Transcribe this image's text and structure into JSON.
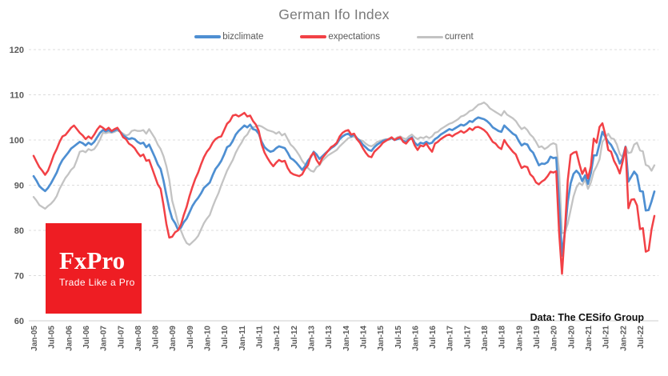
{
  "header": {
    "title": "German Ifo Index"
  },
  "source_note": "Data: The CESifo Group",
  "logo": {
    "brand": "FxPro",
    "tagline": "Trade Like a Pro",
    "bg_color": "#ee1d23"
  },
  "chart_data": {
    "type": "line",
    "title": "German Ifo Index",
    "xlabel": "",
    "ylabel": "",
    "ylim": [
      60,
      120
    ],
    "y_ticks": [
      60,
      70,
      80,
      90,
      100,
      110,
      120
    ],
    "grid": "horizontal-dashed",
    "legend_position": "top-center",
    "x_start_month": "Jan-05",
    "x_end_month": "Dec-22",
    "x_frequency": "monthly",
    "x_tick_every_months": 6,
    "x_tick_labels": [
      "Jan-05",
      "Jul-05",
      "Jan-06",
      "Jul-06",
      "Jan-07",
      "Jul-07",
      "Jan-08",
      "Jul-08",
      "Jan-09",
      "Jul-09",
      "Jan-10",
      "Jul-10",
      "Jan-11",
      "Jul-11",
      "Jan-12",
      "Jul-12",
      "Jan-13",
      "Jul-13",
      "Jan-14",
      "Jul-14",
      "Jan-15",
      "Jul-15",
      "Jan-16",
      "Jul-16",
      "Jan-17",
      "Jul-17",
      "Jan-18",
      "Jul-18",
      "Jan-19",
      "Jul-19",
      "Jan-20",
      "Jul-20",
      "Jan-21",
      "Jul-21",
      "Jan-22",
      "Jul-22"
    ],
    "axis_colors": {
      "tick_label": "#595959",
      "gridline": "#dcdcdc",
      "axisline": "#cfcfcf"
    },
    "series": [
      {
        "name": "bizclimate",
        "color": "#4e8fd2",
        "width": 2.7,
        "values": [
          92.0,
          91.0,
          89.8,
          89.2,
          88.7,
          89.4,
          90.4,
          91.6,
          92.8,
          94.4,
          95.6,
          96.4,
          97.2,
          98.1,
          98.6,
          99.1,
          99.6,
          99.3,
          98.8,
          99.4,
          99.0,
          99.6,
          100.6,
          101.6,
          102.2,
          101.9,
          102.2,
          101.8,
          102.1,
          102.4,
          101.8,
          101.0,
          100.6,
          100.2,
          100.4,
          100.2,
          99.6,
          99.2,
          99.4,
          98.4,
          99.0,
          97.6,
          96.2,
          94.6,
          93.6,
          91.0,
          87.8,
          84.8,
          82.6,
          81.6,
          80.2,
          80.6,
          81.8,
          82.6,
          84.0,
          85.4,
          86.4,
          87.2,
          88.2,
          89.4,
          90.0,
          90.6,
          92.2,
          93.6,
          94.4,
          95.4,
          96.8,
          98.4,
          98.8,
          99.8,
          101.2,
          102.0,
          102.6,
          103.2,
          102.8,
          103.4,
          102.4,
          102.2,
          101.4,
          99.6,
          98.4,
          97.8,
          97.4,
          97.6,
          98.2,
          98.6,
          98.4,
          98.2,
          97.2,
          96.0,
          95.6,
          95.0,
          94.2,
          93.4,
          94.2,
          95.4,
          96.2,
          97.4,
          96.8,
          95.8,
          96.4,
          97.0,
          97.6,
          98.2,
          98.6,
          99.2,
          100.2,
          100.8,
          101.2,
          101.4,
          100.8,
          101.2,
          100.4,
          99.8,
          99.0,
          98.4,
          97.8,
          97.6,
          98.4,
          99.0,
          99.4,
          99.8,
          100.0,
          100.2,
          100.4,
          100.0,
          100.2,
          100.4,
          99.8,
          99.6,
          100.2,
          100.6,
          99.4,
          98.8,
          99.4,
          99.2,
          99.6,
          99.2,
          99.4,
          100.2,
          100.6,
          101.2,
          101.6,
          102.0,
          102.4,
          102.2,
          102.6,
          103.0,
          103.4,
          103.2,
          103.6,
          104.2,
          104.0,
          104.6,
          105.0,
          104.8,
          104.6,
          104.2,
          103.6,
          102.8,
          102.4,
          102.0,
          101.8,
          103.2,
          102.6,
          102.0,
          101.4,
          101.0,
          99.8,
          98.8,
          99.2,
          99.0,
          97.8,
          97.2,
          95.8,
          94.4,
          94.8,
          94.7,
          95.1,
          96.3,
          96.0,
          96.1,
          85.9,
          74.4,
          79.7,
          86.3,
          90.4,
          92.5,
          93.2,
          92.5,
          90.9,
          92.2,
          90.3,
          92.7,
          96.6,
          96.6,
          99.2,
          101.8,
          100.7,
          99.6,
          98.9,
          97.7,
          96.6,
          94.8,
          96.0,
          98.5,
          90.8,
          91.9,
          93.0,
          92.2,
          88.7,
          88.6,
          84.4,
          84.5,
          86.4,
          88.6
        ]
      },
      {
        "name": "expectations",
        "color": "#f24146",
        "width": 2.5,
        "values": [
          96.5,
          95.2,
          94.0,
          93.2,
          92.3,
          93.2,
          94.9,
          96.7,
          98.0,
          99.6,
          100.8,
          101.1,
          101.9,
          102.7,
          103.2,
          102.4,
          101.6,
          101.0,
          100.2,
          100.8,
          100.3,
          101.2,
          102.3,
          103.1,
          102.7,
          102.2,
          102.7,
          102.0,
          102.4,
          102.7,
          101.8,
          100.6,
          100.2,
          99.2,
          98.8,
          98.2,
          97.2,
          96.4,
          96.8,
          95.4,
          95.6,
          93.8,
          92.0,
          90.2,
          89.2,
          85.6,
          81.4,
          78.4,
          78.6,
          79.6,
          80.0,
          81.2,
          83.4,
          85.2,
          87.6,
          89.6,
          91.4,
          92.8,
          94.6,
          96.2,
          97.4,
          98.2,
          99.4,
          100.2,
          100.6,
          100.8,
          102.2,
          103.6,
          104.2,
          105.4,
          105.6,
          105.2,
          105.6,
          106.0,
          105.2,
          105.4,
          104.2,
          103.4,
          102.0,
          99.0,
          97.2,
          96.0,
          95.0,
          94.2,
          95.0,
          95.6,
          95.2,
          95.4,
          93.8,
          92.8,
          92.4,
          92.2,
          92.0,
          92.4,
          93.6,
          94.4,
          96.4,
          97.2,
          95.6,
          94.6,
          96.0,
          96.8,
          97.6,
          98.4,
          98.8,
          99.4,
          100.8,
          101.6,
          102.0,
          102.2,
          101.2,
          101.4,
          100.2,
          99.4,
          98.2,
          97.2,
          96.4,
          96.2,
          97.4,
          98.0,
          98.6,
          99.4,
          99.8,
          100.2,
          100.6,
          100.0,
          100.4,
          100.6,
          99.6,
          99.2,
          100.0,
          100.4,
          98.8,
          97.8,
          98.8,
          98.6,
          99.2,
          98.2,
          97.4,
          99.2,
          99.6,
          100.2,
          100.6,
          101.0,
          101.2,
          100.8,
          101.3,
          101.6,
          102.0,
          101.6,
          102.0,
          102.6,
          102.2,
          102.8,
          102.9,
          102.6,
          102.2,
          101.6,
          100.6,
          99.6,
          99.2,
          98.4,
          98.0,
          100.0,
          99.0,
          98.2,
          97.4,
          96.8,
          95.2,
          93.8,
          94.2,
          94.0,
          92.4,
          91.8,
          90.6,
          90.2,
          90.8,
          91.2,
          92.0,
          93.0,
          92.8,
          93.1,
          79.5,
          70.4,
          79.9,
          91.1,
          96.7,
          97.2,
          97.4,
          94.7,
          92.5,
          93.8,
          91.5,
          94.2,
          100.3,
          99.4,
          102.9,
          103.7,
          101.2,
          97.8,
          97.4,
          95.4,
          94.2,
          92.6,
          95.2,
          98.4,
          84.9,
          86.8,
          86.9,
          85.5,
          80.3,
          80.5,
          75.3,
          75.6,
          80.2,
          83.2
        ]
      },
      {
        "name": "current",
        "color": "#c3c3c3",
        "width": 2.3,
        "values": [
          87.4,
          86.6,
          85.6,
          85.2,
          84.8,
          85.4,
          85.9,
          86.6,
          87.6,
          89.2,
          90.4,
          91.6,
          92.4,
          93.4,
          94.0,
          95.6,
          97.4,
          97.6,
          97.3,
          98.0,
          97.7,
          98.0,
          98.9,
          100.1,
          101.6,
          101.5,
          101.7,
          101.6,
          101.8,
          102.1,
          101.8,
          101.4,
          101.0,
          101.2,
          102.0,
          102.2,
          102.0,
          102.0,
          102.2,
          101.4,
          102.4,
          101.4,
          100.4,
          99.0,
          98.0,
          96.4,
          94.2,
          91.2,
          86.6,
          84.2,
          81.6,
          80.0,
          78.4,
          77.2,
          76.8,
          77.4,
          78.0,
          78.8,
          80.2,
          81.6,
          82.6,
          83.4,
          85.2,
          86.8,
          88.2,
          90.0,
          91.6,
          93.2,
          94.4,
          95.6,
          97.2,
          98.4,
          99.4,
          100.6,
          101.2,
          102.4,
          102.8,
          103.0,
          103.2,
          103.0,
          102.6,
          102.2,
          102.0,
          101.8,
          101.4,
          101.8,
          101.0,
          101.4,
          100.2,
          99.0,
          98.4,
          97.6,
          96.6,
          95.4,
          94.6,
          93.8,
          93.2,
          93.0,
          94.0,
          94.4,
          95.4,
          96.0,
          96.6,
          97.0,
          97.4,
          97.8,
          98.6,
          99.2,
          99.8,
          100.4,
          100.6,
          100.8,
          100.2,
          100.0,
          99.8,
          99.2,
          98.8,
          98.6,
          99.0,
          99.6,
          99.8,
          100.0,
          100.2,
          100.0,
          100.4,
          100.2,
          100.6,
          100.8,
          100.4,
          100.2,
          100.8,
          101.2,
          100.6,
          100.2,
          100.6,
          100.4,
          100.8,
          100.4,
          100.8,
          101.6,
          101.8,
          102.4,
          102.8,
          103.2,
          103.6,
          103.8,
          104.2,
          104.6,
          105.2,
          105.4,
          105.8,
          106.4,
          106.6,
          107.2,
          107.8,
          108.0,
          108.3,
          107.8,
          107.0,
          106.6,
          106.2,
          105.8,
          105.4,
          106.4,
          105.6,
          105.2,
          104.8,
          104.2,
          103.2,
          102.4,
          102.8,
          102.2,
          101.2,
          100.6,
          99.6,
          98.4,
          98.6,
          98.0,
          98.4,
          99.0,
          99.3,
          99.0,
          93.0,
          79.4,
          79.5,
          81.5,
          84.5,
          87.5,
          89.5,
          90.5,
          90.0,
          91.3,
          89.2,
          90.6,
          93.0,
          94.2,
          95.7,
          99.6,
          100.4,
          101.4,
          100.4,
          100.2,
          99.0,
          96.9,
          96.2,
          98.6,
          97.1,
          97.3,
          99.0,
          99.4,
          97.7,
          97.5,
          94.5,
          94.2,
          93.2,
          94.4
        ]
      }
    ]
  }
}
